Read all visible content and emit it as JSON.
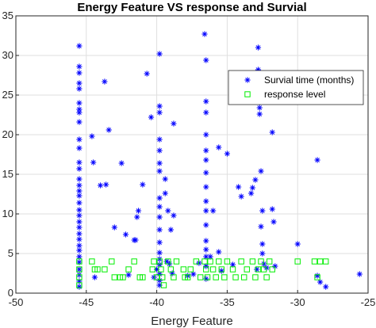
{
  "chart_data": {
    "type": "scatter",
    "title": "Energy Feature VS response and Survial",
    "xlabel": "Energy Feature",
    "ylabel": "",
    "xlim": [
      -50,
      -25
    ],
    "ylim": [
      0,
      35
    ],
    "xticks": [
      -50,
      -45,
      -40,
      -35,
      -30,
      -25
    ],
    "yticks": [
      0,
      5,
      10,
      15,
      20,
      25,
      30,
      35
    ],
    "grid": true,
    "legend_position": "top-right",
    "series": [
      {
        "name": "Survial time (months)",
        "marker": "asterisk",
        "color": "#0000ff",
        "points": [
          [
            -45.5,
            31.2
          ],
          [
            -45.5,
            28.6
          ],
          [
            -45.5,
            27.8
          ],
          [
            -45.5,
            26.5
          ],
          [
            -45.5,
            25.8
          ],
          [
            -45.5,
            24.0
          ],
          [
            -45.5,
            23.2
          ],
          [
            -45.5,
            22.8
          ],
          [
            -45.5,
            21.6
          ],
          [
            -45.5,
            19.4
          ],
          [
            -45.5,
            18.3
          ],
          [
            -45.5,
            16.5
          ],
          [
            -45.5,
            15.7
          ],
          [
            -45.5,
            14.4
          ],
          [
            -45.5,
            13.6
          ],
          [
            -45.5,
            12.9
          ],
          [
            -45.5,
            12.3
          ],
          [
            -45.5,
            11.4
          ],
          [
            -45.5,
            10.5
          ],
          [
            -45.5,
            9.8
          ],
          [
            -45.5,
            9.0
          ],
          [
            -45.5,
            8.3
          ],
          [
            -45.5,
            7.5
          ],
          [
            -45.5,
            6.8
          ],
          [
            -45.5,
            6.0
          ],
          [
            -45.5,
            5.4
          ],
          [
            -45.5,
            4.6
          ],
          [
            -45.5,
            3.9
          ],
          [
            -45.5,
            3.0
          ],
          [
            -45.5,
            2.3
          ],
          [
            -45.5,
            1.5
          ],
          [
            -45.5,
            0.8
          ],
          [
            -44.6,
            19.8
          ],
          [
            -44.5,
            16.5
          ],
          [
            -44.4,
            2.0
          ],
          [
            -44.0,
            13.6
          ],
          [
            -43.7,
            26.7
          ],
          [
            -43.6,
            13.7
          ],
          [
            -43.4,
            20.6
          ],
          [
            -43.0,
            8.3
          ],
          [
            -42.5,
            16.4
          ],
          [
            -42.2,
            7.4
          ],
          [
            -42.0,
            2.3
          ],
          [
            -41.6,
            6.7
          ],
          [
            -41.5,
            6.7
          ],
          [
            -41.4,
            9.6
          ],
          [
            -41.3,
            10.4
          ],
          [
            -41.0,
            13.7
          ],
          [
            -40.7,
            27.7
          ],
          [
            -40.4,
            22.2
          ],
          [
            -40.2,
            2.0
          ],
          [
            -40.0,
            3.0
          ],
          [
            -39.8,
            30.2
          ],
          [
            -39.8,
            23.6
          ],
          [
            -39.8,
            22.8
          ],
          [
            -39.8,
            19.4
          ],
          [
            -39.8,
            18.0
          ],
          [
            -39.8,
            16.4
          ],
          [
            -39.8,
            15.4
          ],
          [
            -39.8,
            12.0
          ],
          [
            -39.8,
            10.9
          ],
          [
            -39.8,
            9.6
          ],
          [
            -39.8,
            8.0
          ],
          [
            -39.8,
            6.4
          ],
          [
            -39.8,
            5.1
          ],
          [
            -39.8,
            4.3
          ],
          [
            -39.8,
            3.6
          ],
          [
            -39.8,
            2.4
          ],
          [
            -39.8,
            1.6
          ],
          [
            -39.8,
            1.0
          ],
          [
            -39.4,
            14.4
          ],
          [
            -39.4,
            12.6
          ],
          [
            -39.3,
            4.0
          ],
          [
            -39.2,
            10.4
          ],
          [
            -39.1,
            3.7
          ],
          [
            -39.0,
            8.0
          ],
          [
            -38.9,
            2.5
          ],
          [
            -38.8,
            21.4
          ],
          [
            -38.8,
            9.8
          ],
          [
            -37.8,
            2.2
          ],
          [
            -37.4,
            2.4
          ],
          [
            -37.0,
            3.8
          ],
          [
            -36.6,
            32.7
          ],
          [
            -36.5,
            29.4
          ],
          [
            -36.5,
            24.2
          ],
          [
            -36.5,
            22.8
          ],
          [
            -36.5,
            20.0
          ],
          [
            -36.5,
            18.0
          ],
          [
            -36.5,
            16.8
          ],
          [
            -36.5,
            15.2
          ],
          [
            -36.5,
            13.4
          ],
          [
            -36.5,
            11.6
          ],
          [
            -36.5,
            10.4
          ],
          [
            -36.5,
            8.6
          ],
          [
            -36.5,
            6.6
          ],
          [
            -36.5,
            5.5
          ],
          [
            -36.5,
            4.6
          ],
          [
            -36.5,
            3.4
          ],
          [
            -36.5,
            1.8
          ],
          [
            -36.2,
            4.6
          ],
          [
            -36.0,
            10.4
          ],
          [
            -35.6,
            18.4
          ],
          [
            -35.6,
            5.2
          ],
          [
            -35.4,
            2.8
          ],
          [
            -35.0,
            17.6
          ],
          [
            -34.6,
            3.6
          ],
          [
            -34.2,
            13.4
          ],
          [
            -34.0,
            12.2
          ],
          [
            -33.7,
            24.8
          ],
          [
            -33.3,
            12.6
          ],
          [
            -33.2,
            13.3
          ],
          [
            -33.0,
            14.3
          ],
          [
            -32.9,
            3.0
          ],
          [
            -32.8,
            31.0
          ],
          [
            -32.8,
            28.2
          ],
          [
            -32.7,
            23.4
          ],
          [
            -32.7,
            22.6
          ],
          [
            -32.6,
            15.4
          ],
          [
            -32.6,
            8.4
          ],
          [
            -32.5,
            10.4
          ],
          [
            -32.5,
            6.2
          ],
          [
            -32.5,
            5.0
          ],
          [
            -32.4,
            3.7
          ],
          [
            -32.2,
            3.2
          ],
          [
            -31.8,
            20.3
          ],
          [
            -31.8,
            10.6
          ],
          [
            -31.7,
            9.0
          ],
          [
            -31.6,
            3.4
          ],
          [
            -30.0,
            6.2
          ],
          [
            -28.6,
            16.8
          ],
          [
            -28.6,
            2.2
          ],
          [
            -28.4,
            1.4
          ],
          [
            -28.0,
            0.8
          ],
          [
            -25.6,
            2.4
          ]
        ]
      },
      {
        "name": "response level",
        "marker": "square",
        "color": "#00ee00",
        "points": [
          [
            -45.5,
            4.0
          ],
          [
            -45.5,
            3.0
          ],
          [
            -45.5,
            2.0
          ],
          [
            -45.5,
            1.0
          ],
          [
            -44.6,
            4.0
          ],
          [
            -44.4,
            3.0
          ],
          [
            -44.2,
            3.0
          ],
          [
            -43.7,
            3.0
          ],
          [
            -43.2,
            4.0
          ],
          [
            -43.0,
            2.0
          ],
          [
            -42.6,
            2.0
          ],
          [
            -42.4,
            2.0
          ],
          [
            -42.0,
            3.0
          ],
          [
            -41.6,
            4.0
          ],
          [
            -41.2,
            2.0
          ],
          [
            -41.0,
            2.0
          ],
          [
            -40.3,
            3.0
          ],
          [
            -40.2,
            4.0
          ],
          [
            -40.0,
            2.0
          ],
          [
            -39.8,
            4.0
          ],
          [
            -39.7,
            3.0
          ],
          [
            -39.6,
            2.0
          ],
          [
            -39.5,
            1.0
          ],
          [
            -39.2,
            4.0
          ],
          [
            -39.0,
            3.0
          ],
          [
            -38.8,
            2.0
          ],
          [
            -38.6,
            4.0
          ],
          [
            -38.1,
            3.0
          ],
          [
            -38.0,
            2.0
          ],
          [
            -37.8,
            2.0
          ],
          [
            -37.6,
            3.0
          ],
          [
            -37.2,
            4.0
          ],
          [
            -36.9,
            2.0
          ],
          [
            -36.6,
            4.0
          ],
          [
            -36.5,
            3.0
          ],
          [
            -36.4,
            2.0
          ],
          [
            -36.2,
            4.0
          ],
          [
            -36.0,
            3.0
          ],
          [
            -35.8,
            2.0
          ],
          [
            -35.6,
            4.0
          ],
          [
            -35.4,
            3.0
          ],
          [
            -35.2,
            2.0
          ],
          [
            -35.0,
            4.0
          ],
          [
            -34.6,
            3.0
          ],
          [
            -34.4,
            2.0
          ],
          [
            -34.0,
            4.0
          ],
          [
            -33.8,
            2.0
          ],
          [
            -33.6,
            3.0
          ],
          [
            -33.2,
            4.0
          ],
          [
            -33.0,
            2.0
          ],
          [
            -32.8,
            3.0
          ],
          [
            -32.6,
            4.0
          ],
          [
            -32.4,
            3.0
          ],
          [
            -32.2,
            2.0
          ],
          [
            -32.0,
            4.0
          ],
          [
            -31.8,
            3.0
          ],
          [
            -30.0,
            4.0
          ],
          [
            -28.8,
            4.0
          ],
          [
            -28.4,
            4.0
          ],
          [
            -28.0,
            4.0
          ],
          [
            -28.6,
            2.0
          ]
        ]
      }
    ]
  }
}
